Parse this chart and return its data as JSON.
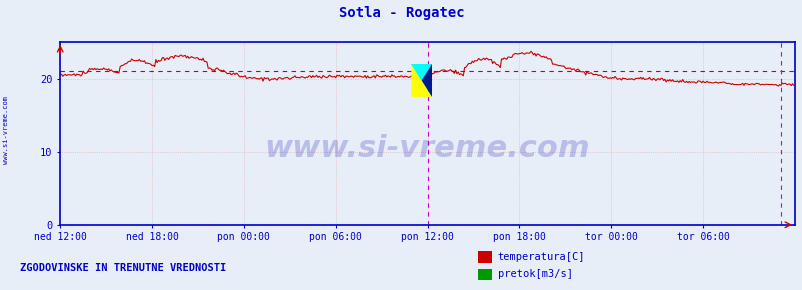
{
  "title": "Sotla - Rogatec",
  "title_color": "#0000cc",
  "title_fontsize": 10,
  "background_color": "#e8eef8",
  "plot_bg_color": "#e8eef8",
  "xlim": [
    0,
    576
  ],
  "ylim": [
    0,
    25
  ],
  "yticks": [
    0,
    10,
    20
  ],
  "x_tick_labels": [
    "ned 12:00",
    "ned 18:00",
    "pon 00:00",
    "pon 06:00",
    "pon 12:00",
    "pon 18:00",
    "tor 00:00",
    "tor 06:00"
  ],
  "x_tick_positions": [
    0,
    72,
    144,
    216,
    288,
    360,
    432,
    504
  ],
  "grid_color": "#ddaaaa",
  "grid_linestyle": ":",
  "axis_color": "#0000cc",
  "tick_label_color": "#0000cc",
  "temp_line_color": "#cc0000",
  "temp_avg_color": "#cc0000",
  "temp_avg_value": 21.0,
  "flow_line_color": "#009900",
  "watermark_text": "www.si-vreme.com",
  "watermark_color": "#0000aa",
  "watermark_alpha": 0.2,
  "watermark_fontsize": 22,
  "side_text": "www.si-vreme.com",
  "side_color": "#0000cc",
  "legend_text1": "temperatura[C]",
  "legend_text2": "pretok[m3/s]",
  "legend_color1": "#cc0000",
  "legend_color2": "#009900",
  "bottom_text": "ZGODOVINSKE IN TRENUTNE VREDNOSTI",
  "bottom_color": "#0000cc",
  "magenta_vline1": 288,
  "magenta_vline2": 565,
  "magenta_color": "#cc00cc",
  "arrow_color": "#cc0000"
}
